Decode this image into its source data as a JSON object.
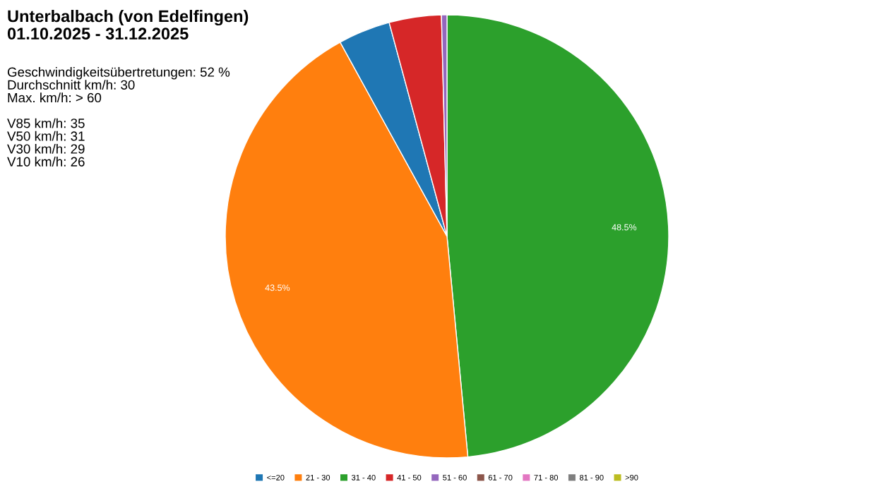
{
  "chart_data": {
    "type": "pie",
    "title": "Unterbalbach (von Edelfingen)\n01.10.2025 - 31.12.2025",
    "categories": [
      "<=20",
      "21 - 30",
      "31 - 40",
      "41 - 50",
      "51 - 60",
      "61 - 70",
      "71 - 80",
      "81 - 90",
      ">90"
    ],
    "values": [
      3.8,
      43.5,
      48.5,
      3.8,
      0.4,
      0,
      0,
      0,
      0
    ],
    "colors": [
      "#1f77b4",
      "#ff7f0e",
      "#2ca02c",
      "#d62728",
      "#9467bd",
      "#8c564b",
      "#e377c2",
      "#7f7f7f",
      "#bcbd22"
    ],
    "value_labels": [
      null,
      "43.5%",
      "48.5%",
      null,
      null,
      null,
      null,
      null,
      null
    ],
    "legend": "bottom",
    "annotations": [
      "Geschwindigkeitsübertretungen: 52 %\nDurchschnitt km/h: 30\nMax. km/h: > 60\n\nV85 km/h: 35\nV50 km/h: 31\nV30 km/h: 29\nV10 km/h: 26"
    ]
  }
}
